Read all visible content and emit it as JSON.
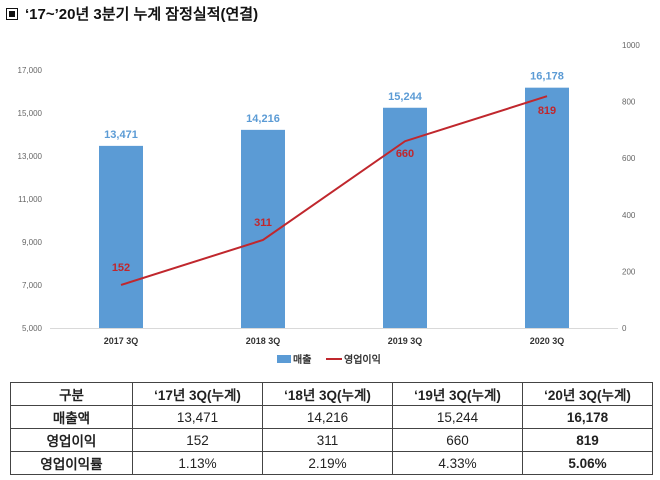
{
  "title": "‘17~’20년 3분기 누계 잠정실적(연결)",
  "chart_data": {
    "type": "bar+line",
    "categories": [
      "2017 3Q",
      "2018 3Q",
      "2019 3Q",
      "2020 3Q"
    ],
    "series": [
      {
        "name": "매출",
        "type": "bar",
        "axis": "left",
        "values": [
          13471,
          14216,
          15244,
          16178
        ],
        "labels": [
          "13,471",
          "14,216",
          "15,244",
          "16,178"
        ],
        "color": "#5b9bd5"
      },
      {
        "name": "영업이익",
        "type": "line",
        "axis": "right",
        "values": [
          152,
          311,
          660,
          819
        ],
        "labels": [
          "152",
          "311",
          "660",
          "819"
        ],
        "color": "#c0272d"
      }
    ],
    "left_axis": {
      "range": [
        5000,
        17000
      ],
      "ticks": [
        "5,000",
        "7,000",
        "9,000",
        "11,000",
        "13,000",
        "15,000",
        "17,000"
      ]
    },
    "right_axis": {
      "range": [
        0,
        1000
      ],
      "ticks": [
        "0",
        "200",
        "400",
        "600",
        "800",
        "1000"
      ]
    },
    "grid": false,
    "legend": "bottom"
  },
  "table": {
    "header": [
      "구분",
      "‘17년 3Q(누계)",
      "‘18년 3Q(누계)",
      "‘19년 3Q(누계)",
      "‘20년 3Q(누계)"
    ],
    "rows": [
      [
        "매출액",
        "13,471",
        "14,216",
        "15,244",
        "16,178"
      ],
      [
        "영업이익",
        "152",
        "311",
        "660",
        "819"
      ],
      [
        "영업이익률",
        "1.13%",
        "2.19%",
        "4.33%",
        "5.06%"
      ]
    ]
  }
}
